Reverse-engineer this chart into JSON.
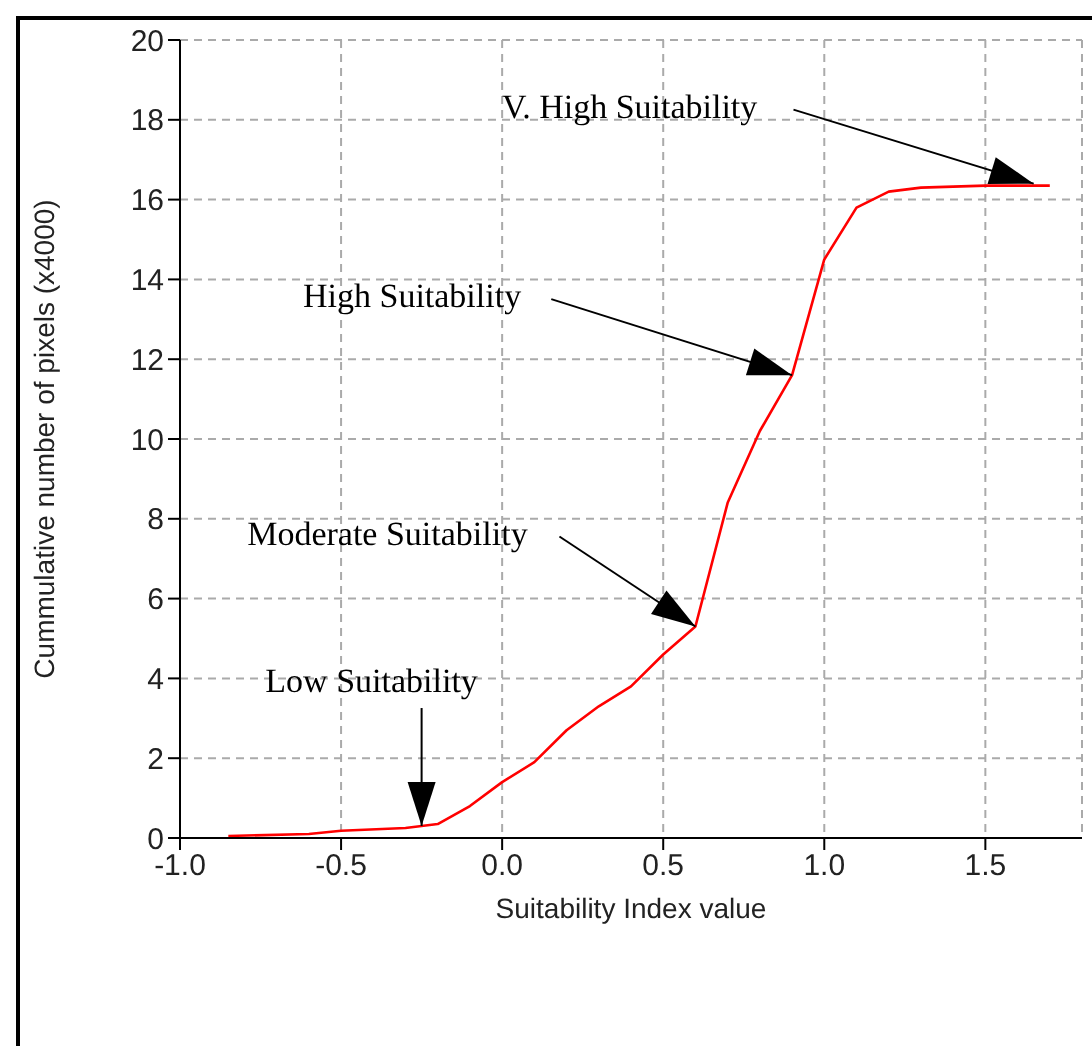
{
  "chart_data": {
    "type": "line",
    "xlabel": "Suitability Index value",
    "ylabel": "Cummulative number of pixels (x4000)",
    "x": [
      -0.85,
      -0.6,
      -0.5,
      -0.3,
      -0.2,
      -0.1,
      0,
      0.1,
      0.2,
      0.3,
      0.4,
      0.5,
      0.6,
      0.7,
      0.8,
      0.9,
      1.0,
      1.1,
      1.2,
      1.3,
      1.5,
      1.7
    ],
    "series": [
      {
        "color": "#ff0000",
        "values": [
          0.05,
          0.1,
          0.18,
          0.25,
          0.35,
          0.8,
          1.4,
          1.9,
          2.7,
          3.3,
          3.8,
          4.6,
          5.3,
          8.4,
          10.2,
          11.6,
          14.5,
          15.8,
          16.2,
          16.3,
          16.35,
          16.35
        ]
      }
    ],
    "xlim": [
      -1,
      1.8
    ],
    "xticks": [
      {
        "value": -1,
        "label": "-1.0"
      },
      {
        "value": -0.5,
        "label": "-0.5"
      },
      {
        "value": 0,
        "label": "0.0"
      },
      {
        "value": 0.5,
        "label": "0.5"
      },
      {
        "value": 1,
        "label": "1.0"
      },
      {
        "value": 1.5,
        "label": "1.5"
      }
    ],
    "ylim": [
      0,
      20
    ],
    "yticks": [
      0,
      2,
      4,
      6,
      8,
      10,
      12,
      14,
      16,
      18,
      20
    ],
    "grid": true,
    "marker": "none",
    "line_style": "solid",
    "legend": false,
    "annotations": [
      {
        "text": "V. High Suitability",
        "x": 1.65,
        "y": 16.4
      },
      {
        "text": "High Suitability",
        "x": 0.9,
        "y": 11.6
      },
      {
        "text": "Moderate Suitability",
        "x": 0.6,
        "y": 5.3
      },
      {
        "text": "Low Suitability",
        "x": -0.25,
        "y": 0.3
      }
    ]
  }
}
